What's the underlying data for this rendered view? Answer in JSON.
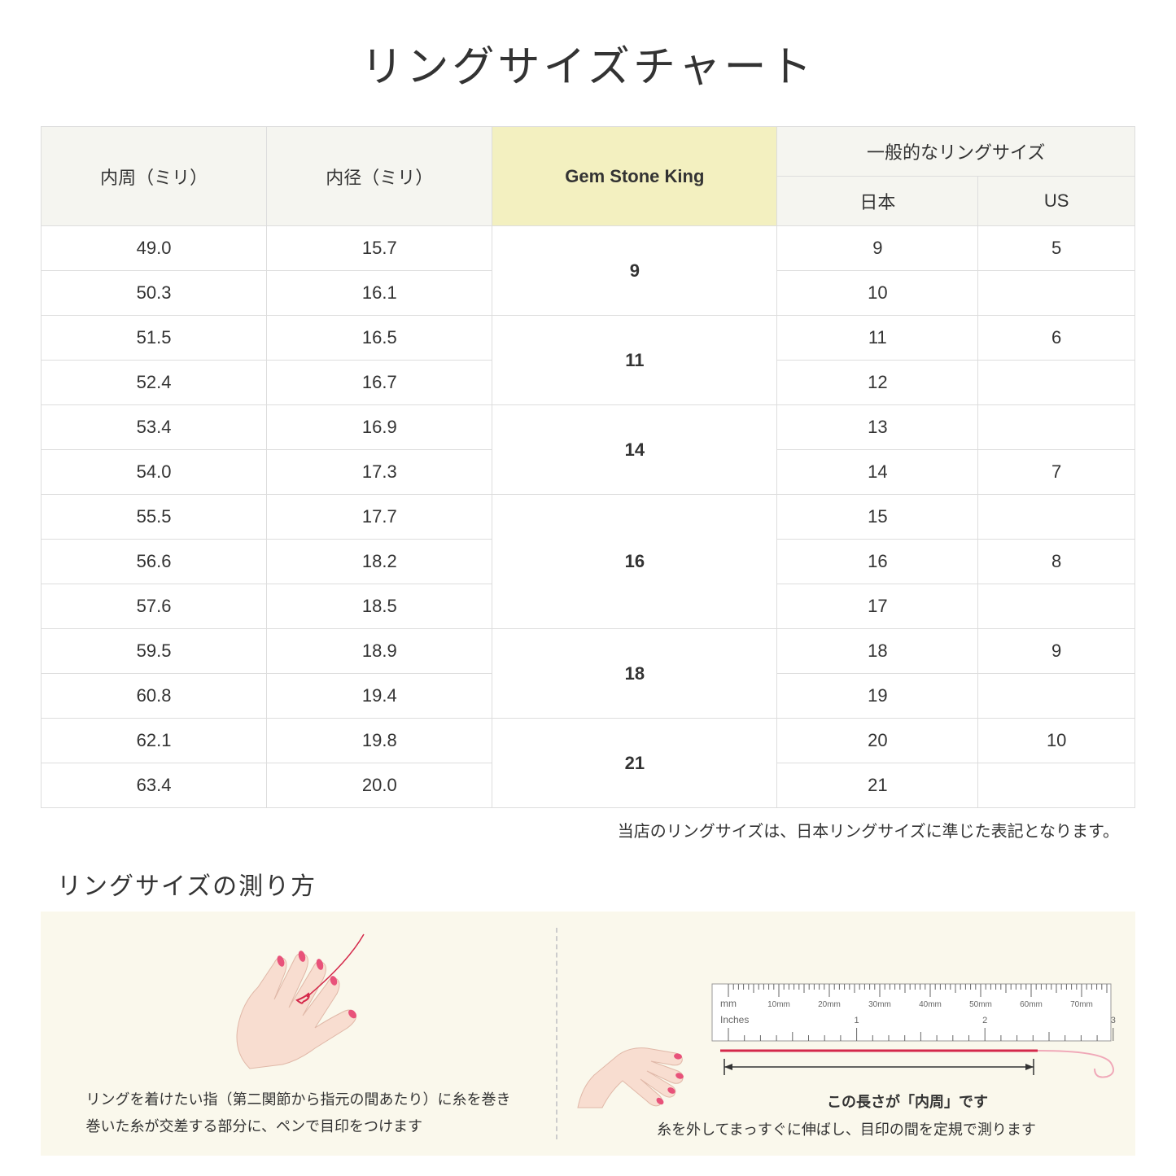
{
  "title": "リングサイズチャート",
  "headers": {
    "circumference": "内周（ミリ）",
    "diameter": "内径（ミリ）",
    "gsk": "Gem Stone King",
    "general": "一般的なリングサイズ",
    "japan": "日本",
    "us": "US"
  },
  "rows": [
    {
      "c": "49.0",
      "d": "15.7",
      "g": "9",
      "gspan": 2,
      "j": "9",
      "u": "5"
    },
    {
      "c": "50.3",
      "d": "16.1",
      "j": "10",
      "u": ""
    },
    {
      "c": "51.5",
      "d": "16.5",
      "g": "11",
      "gspan": 2,
      "j": "11",
      "u": "6"
    },
    {
      "c": "52.4",
      "d": "16.7",
      "j": "12",
      "u": ""
    },
    {
      "c": "53.4",
      "d": "16.9",
      "g": "14",
      "gspan": 2,
      "j": "13",
      "u": ""
    },
    {
      "c": "54.0",
      "d": "17.3",
      "j": "14",
      "u": "7"
    },
    {
      "c": "55.5",
      "d": "17.7",
      "g": "16",
      "gspan": 3,
      "j": "15",
      "u": ""
    },
    {
      "c": "56.6",
      "d": "18.2",
      "j": "16",
      "u": "8"
    },
    {
      "c": "57.6",
      "d": "18.5",
      "j": "17",
      "u": ""
    },
    {
      "c": "59.5",
      "d": "18.9",
      "g": "18",
      "gspan": 2,
      "j": "18",
      "u": "9"
    },
    {
      "c": "60.8",
      "d": "19.4",
      "j": "19",
      "u": ""
    },
    {
      "c": "62.1",
      "d": "19.8",
      "g": "21",
      "gspan": 2,
      "j": "20",
      "u": "10"
    },
    {
      "c": "63.4",
      "d": "20.0",
      "j": "21",
      "u": ""
    }
  ],
  "note": "当店のリングサイズは、日本リングサイズに準じた表記となります。",
  "subtitle": "リングサイズの測り方",
  "panel1_caption": "リングを着けたい指（第二関節から指元の間あたり）に糸を巻き\n巻いた糸が交差する部分に、ペンで目印をつけます",
  "panel2_inner": "この長さが「内周」です",
  "panel2_caption": "糸を外してまっすぐに伸ばし、目印の間を定規で測ります",
  "ruler": {
    "mm_label": "mm",
    "inches_label": "Inches",
    "mm_marks": [
      "10mm",
      "20mm",
      "30mm",
      "40mm",
      "50mm",
      "60mm",
      "70mm"
    ]
  },
  "colors": {
    "header_bg": "#f5f5f0",
    "highlight_bg": "#f3f0c0",
    "border": "#dddddd",
    "guide_bg": "#faf8ec",
    "skin": "#f8ddd0",
    "nail": "#e8527a",
    "thread": "#d4284a",
    "ruler_line": "#666666"
  }
}
